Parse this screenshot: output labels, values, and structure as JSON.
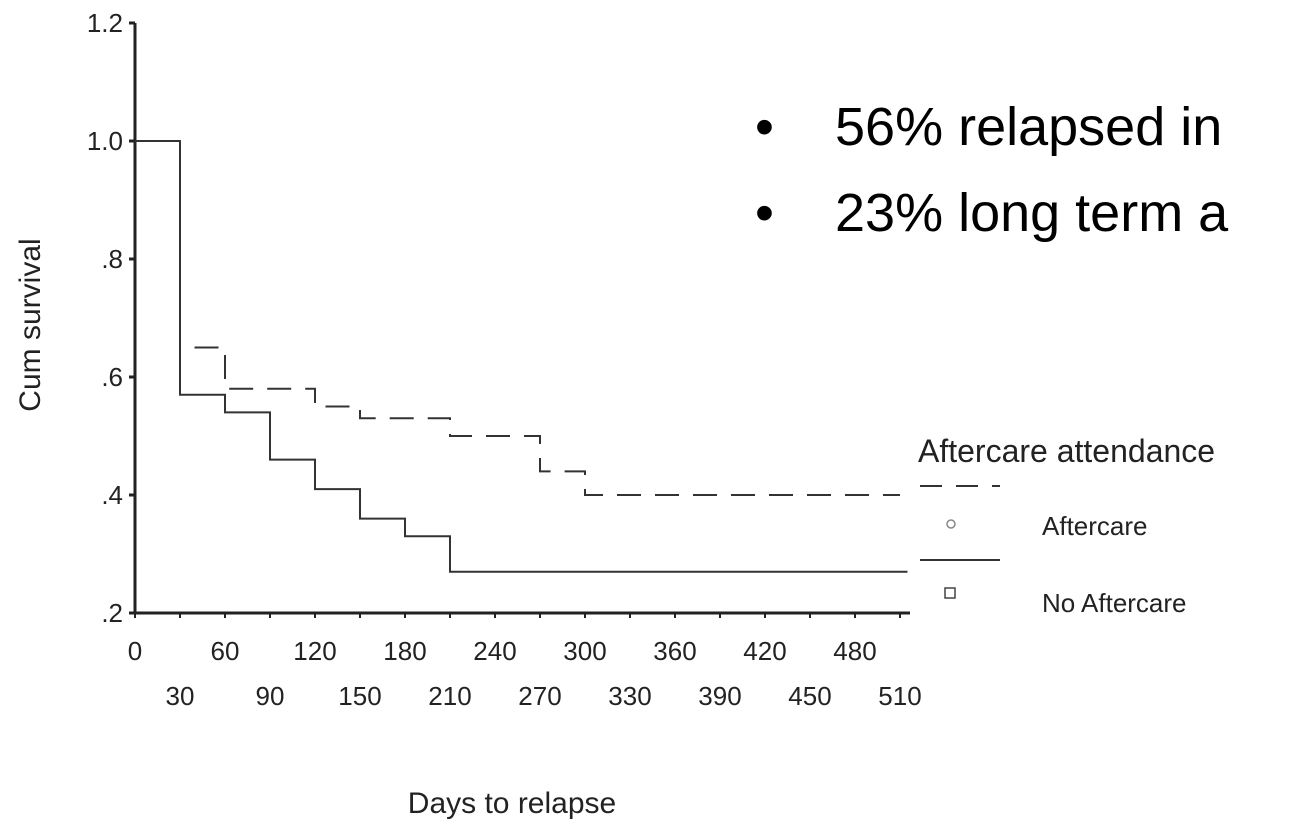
{
  "chart_data": {
    "type": "line",
    "title": "",
    "xlabel": "Days to relapse",
    "ylabel": "Cum survival",
    "xlim": [
      0,
      510
    ],
    "ylim": [
      0.2,
      1.2
    ],
    "x_ticks_row1": [
      "0",
      "60",
      "120",
      "180",
      "240",
      "300",
      "360",
      "420",
      "480"
    ],
    "x_ticks_row2": [
      "30",
      "90",
      "150",
      "210",
      "270",
      "330",
      "390",
      "450",
      "510"
    ],
    "y_ticks": [
      {
        "value": 1.2,
        "label": "1.2"
      },
      {
        "value": 1.0,
        "label": "1.0"
      },
      {
        "value": 0.8,
        "label": ".8"
      },
      {
        "value": 0.6,
        "label": ".6"
      },
      {
        "value": 0.4,
        "label": ".4"
      },
      {
        "value": 0.2,
        "label": ".2"
      }
    ],
    "grid": false,
    "step": true,
    "series": [
      {
        "name": "Aftercare",
        "style": "dashed",
        "color": "#333333",
        "x": [
          0,
          30,
          60,
          120,
          150,
          210,
          270,
          300,
          510
        ],
        "y": [
          1.0,
          0.65,
          0.58,
          0.55,
          0.53,
          0.5,
          0.44,
          0.4,
          0.4
        ]
      },
      {
        "name": "No Aftercare",
        "style": "solid",
        "color": "#333333",
        "x": [
          0,
          30,
          60,
          90,
          120,
          150,
          180,
          210,
          515
        ],
        "y": [
          1.0,
          0.57,
          0.54,
          0.46,
          0.41,
          0.36,
          0.33,
          0.27,
          0.27
        ]
      }
    ],
    "legend": {
      "title": "Aftercare attendance",
      "position": "right",
      "entries": [
        "Aftercare",
        "No Aftercare"
      ]
    }
  },
  "bullets": [
    "56% relapsed in",
    "23% long term a"
  ]
}
